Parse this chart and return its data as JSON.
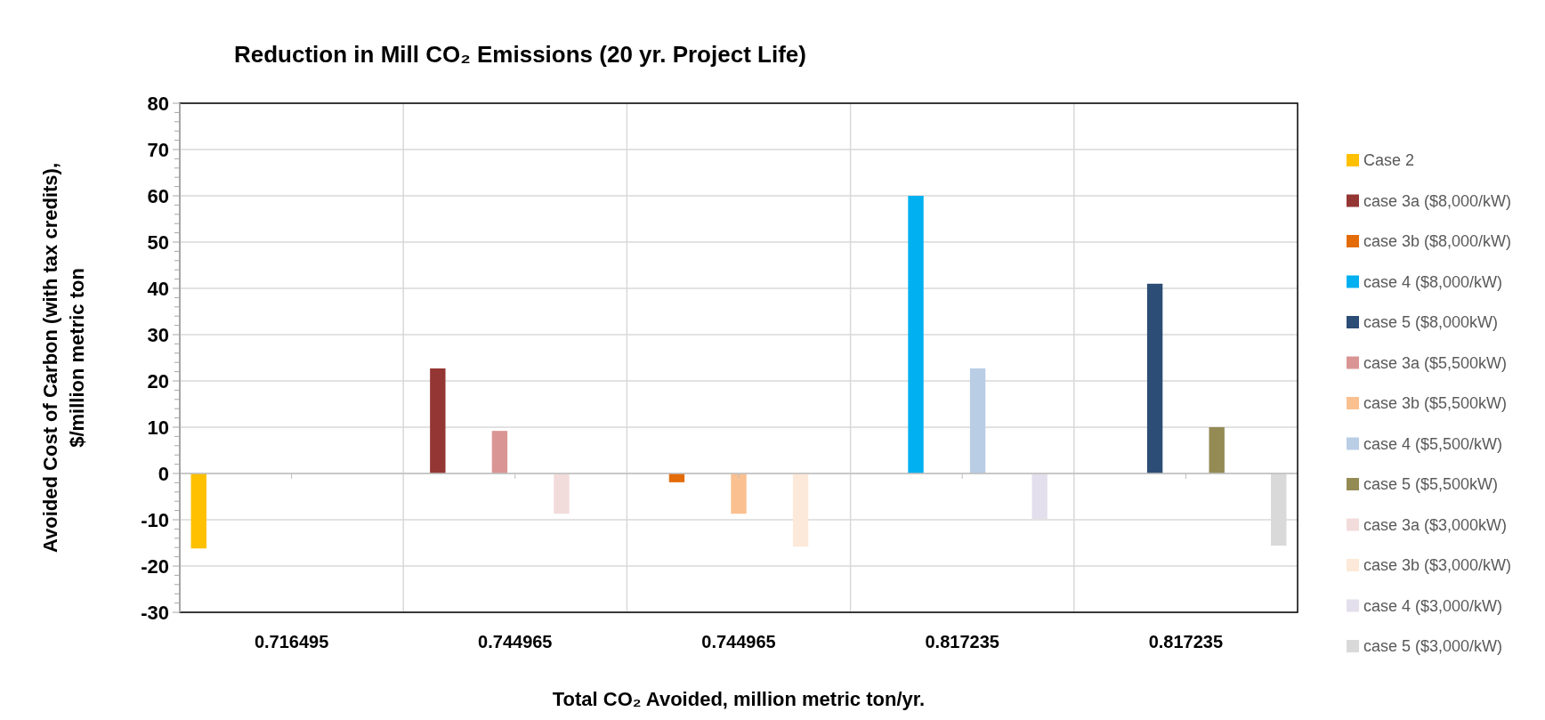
{
  "chart_data": {
    "type": "bar",
    "title": "Reduction in Mill CO₂ Emissions (20 yr. Project Life)",
    "xlabel": "Total CO₂ Avoided, million metric ton/yr.",
    "ylabel": "Avoided Cost of Carbon (with tax credits),\n$/million metric ton",
    "categories": [
      "0.716495",
      "0.744965",
      "0.744965",
      "0.817235",
      "0.817235"
    ],
    "series": [
      {
        "name": "Case 2",
        "color": "#ffc000",
        "values": [
          -16.2,
          null,
          null,
          null,
          null
        ]
      },
      {
        "name": "case 3a ($8,000/kW)",
        "color": "#943634",
        "values": [
          null,
          22.7,
          null,
          null,
          null
        ]
      },
      {
        "name": "case 3b ($8,000/kW)",
        "color": "#e36c09",
        "values": [
          null,
          null,
          -1.9,
          null,
          null
        ]
      },
      {
        "name": "case 4 ($8,000/kW)",
        "color": "#00b0f0",
        "values": [
          null,
          null,
          null,
          60,
          null
        ]
      },
      {
        "name": "case 5 ($8,000kW)",
        "color": "#2c4d75",
        "values": [
          null,
          null,
          null,
          null,
          41
        ]
      },
      {
        "name": "case 3a ($5,500kW)",
        "color": "#d99594",
        "values": [
          null,
          9.2,
          null,
          null,
          null
        ]
      },
      {
        "name": "case 3b ($5,500kW)",
        "color": "#fac090",
        "values": [
          null,
          null,
          -8.7,
          null,
          null
        ]
      },
      {
        "name": "case 4 ($5,500/kW)",
        "color": "#b9cde5",
        "values": [
          null,
          null,
          null,
          22.7,
          null
        ]
      },
      {
        "name": "case 5 ($5,500kW)",
        "color": "#948a54",
        "values": [
          null,
          null,
          null,
          null,
          10
        ]
      },
      {
        "name": "case 3a ($3,000kW)",
        "color": "#f2dcdb",
        "values": [
          null,
          -8.7,
          null,
          null,
          null
        ]
      },
      {
        "name": "case 3b ($3,000/kW)",
        "color": "#fde9d9",
        "values": [
          null,
          null,
          -15.8,
          null,
          null
        ]
      },
      {
        "name": "case 4 ($3,000/kW)",
        "color": "#e4dfec",
        "values": [
          null,
          null,
          null,
          -9.8,
          null
        ]
      },
      {
        "name": "case 5 ($3,000/kW)",
        "color": "#d9d9d9",
        "values": [
          null,
          null,
          null,
          null,
          -15.6
        ]
      }
    ],
    "ylim": [
      -30,
      80
    ],
    "yticks": [
      -30,
      {
        "value": -28,
        "label": null
      },
      {
        "value": -26,
        "label": null
      },
      {
        "value": -24,
        "label": null
      },
      {
        "value": -22,
        "label": null
      },
      -20,
      {
        "value": -18,
        "label": null
      },
      {
        "value": -16,
        "label": null
      },
      {
        "value": -14,
        "label": null
      },
      {
        "value": -12,
        "label": null
      },
      -10,
      {
        "value": -8,
        "label": null
      },
      {
        "value": -6,
        "label": null
      },
      {
        "value": -4,
        "label": null
      },
      {
        "value": -2,
        "label": null
      },
      0,
      {
        "value": 2,
        "label": null
      },
      {
        "value": 4,
        "label": null
      },
      {
        "value": 6,
        "label": null
      },
      {
        "value": 8,
        "label": null
      },
      10,
      {
        "value": 12,
        "label": null
      },
      {
        "value": 14,
        "label": null
      },
      {
        "value": 16,
        "label": null
      },
      {
        "value": 18,
        "label": null
      },
      20,
      {
        "value": 22,
        "label": null
      },
      {
        "value": 24,
        "label": null
      },
      {
        "value": 26,
        "label": null
      },
      {
        "value": 28,
        "label": null
      },
      30,
      {
        "value": 32,
        "label": null
      },
      {
        "value": 34,
        "label": null
      },
      {
        "value": 36,
        "label": null
      },
      {
        "value": 38,
        "label": null
      },
      40,
      {
        "value": 42,
        "label": null
      },
      {
        "value": 44,
        "label": null
      },
      {
        "value": 46,
        "label": null
      },
      {
        "value": 48,
        "label": null
      },
      50,
      {
        "value": 52,
        "label": null
      },
      {
        "value": 54,
        "label": null
      },
      {
        "value": 56,
        "label": null
      },
      {
        "value": 58,
        "label": null
      },
      60,
      {
        "value": 62,
        "label": null
      },
      {
        "value": 64,
        "label": null
      },
      {
        "value": 66,
        "label": null
      },
      {
        "value": 68,
        "label": null
      },
      70,
      {
        "value": 72,
        "label": null
      },
      {
        "value": 74,
        "label": null
      },
      {
        "value": 76,
        "label": null
      },
      {
        "value": 78,
        "label": null
      },
      80
    ],
    "grid": true,
    "legend": "right"
  }
}
